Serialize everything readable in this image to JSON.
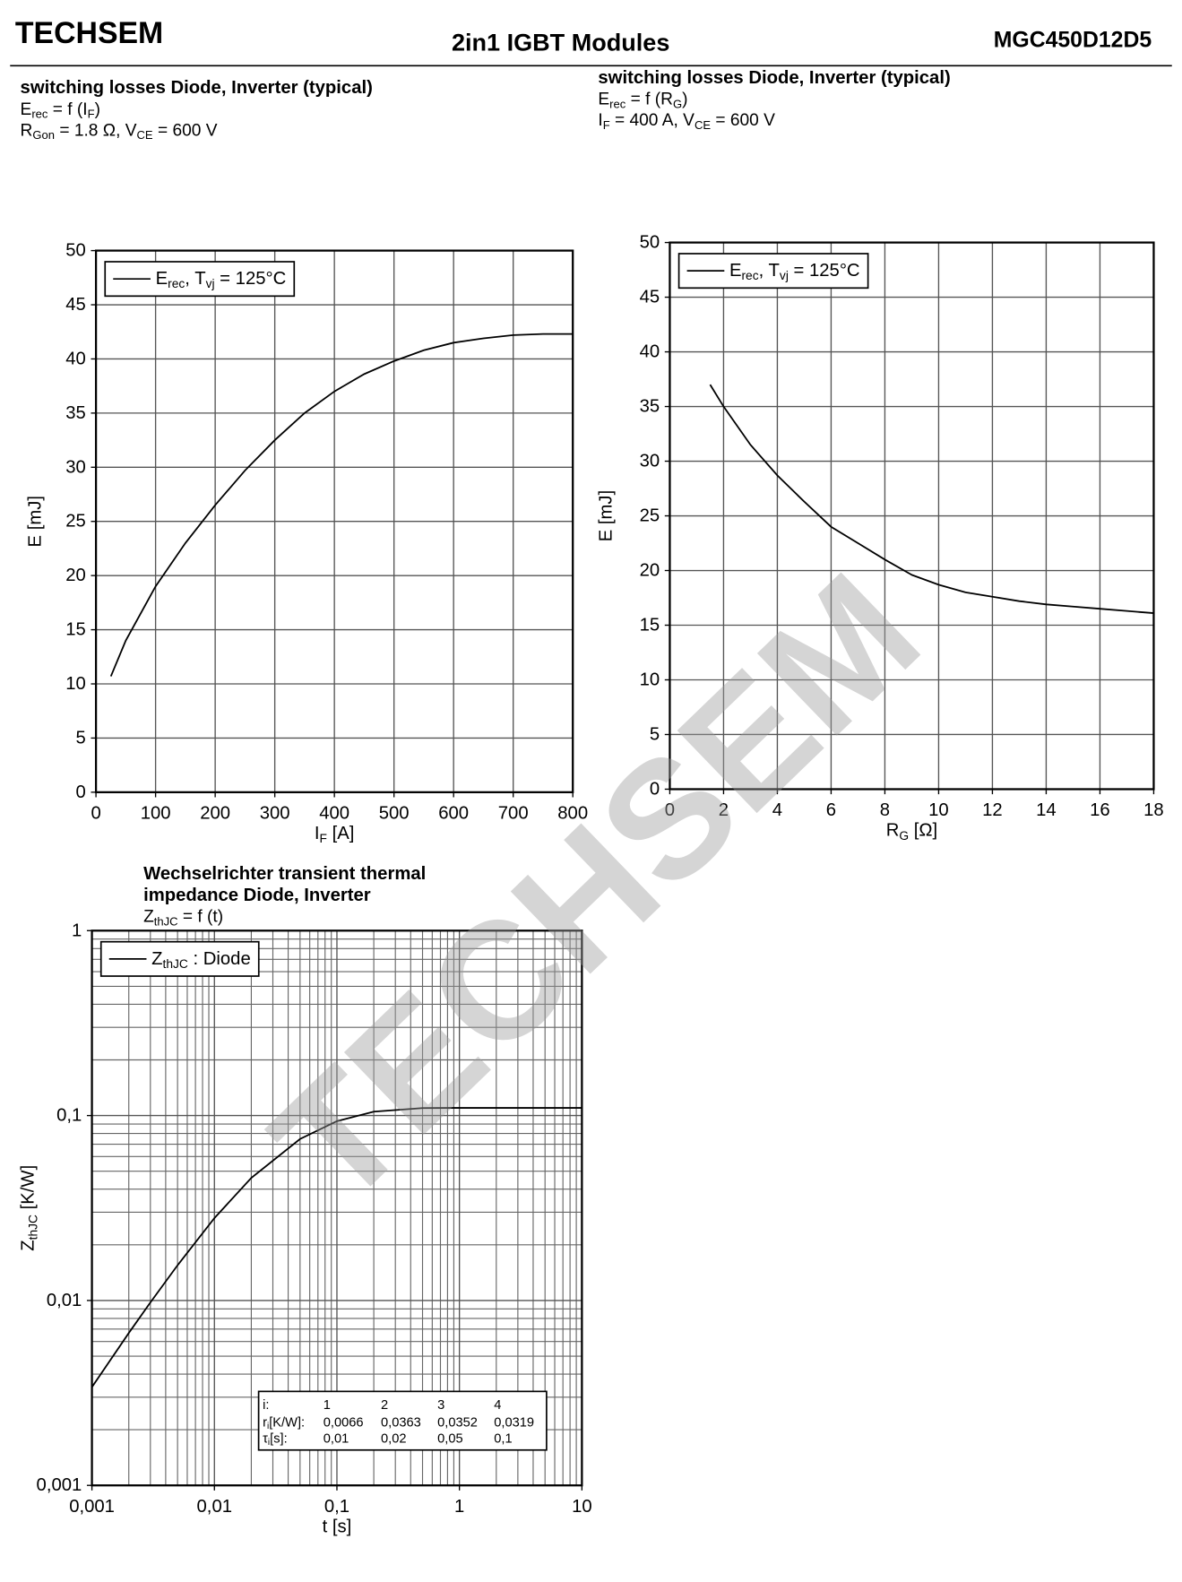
{
  "header": {
    "brand": "TECHSEM",
    "title": "2in1  IGBT  Modules",
    "part_number": "MGC450D12D5",
    "watermark": "TECHSEM"
  },
  "chart_data": [
    {
      "type": "line",
      "title": [
        "switching losses  Diode, Inverter (typical)"
      ],
      "subtitle": [
        [
          "E",
          "rec",
          " = f (I",
          "F",
          ")"
        ],
        [
          "R",
          "Gon",
          " = 1.8 Ω, V",
          "CE",
          " = 600 V"
        ]
      ],
      "x": [
        25,
        50,
        100,
        150,
        200,
        250,
        300,
        350,
        400,
        450,
        500,
        550,
        600,
        650,
        700,
        750,
        800
      ],
      "series": [
        {
          "name": [
            "E",
            "rec",
            ", T",
            "vj",
            " = 125°C"
          ],
          "color": "#000000",
          "values": [
            10.7,
            14,
            19,
            23,
            26.5,
            29.7,
            32.5,
            35,
            37,
            38.6,
            39.8,
            40.8,
            41.5,
            41.9,
            42.2,
            42.3,
            42.3
          ]
        }
      ],
      "xlabel": [
        "I",
        "F",
        " [A]"
      ],
      "ylabel": [
        "E [mJ]"
      ],
      "xlim": [
        0,
        800
      ],
      "xticks": [
        0,
        100,
        200,
        300,
        400,
        500,
        600,
        700,
        800
      ],
      "ylim": [
        0,
        50
      ],
      "yticks": [
        0,
        5,
        10,
        15,
        20,
        25,
        30,
        35,
        40,
        45,
        50
      ],
      "grid": true,
      "legend": "upper left"
    },
    {
      "type": "line",
      "title": [
        "switching losses  Diode, Inverter (typical)"
      ],
      "subtitle": [
        [
          "E",
          "rec",
          " = f (R",
          "G",
          ")"
        ],
        [
          "I",
          "F",
          " = 400 A, V",
          "CE",
          " = 600 V"
        ]
      ],
      "x": [
        1.5,
        2,
        3,
        4,
        5,
        6,
        7,
        8,
        9,
        10,
        11,
        12,
        13,
        14,
        15,
        16,
        17,
        18
      ],
      "series": [
        {
          "name": [
            "E",
            "rec",
            ", T",
            "vj",
            " = 125°C"
          ],
          "color": "#000000",
          "values": [
            37,
            35,
            31.5,
            28.7,
            26.3,
            24,
            22.5,
            21,
            19.6,
            18.7,
            18,
            17.6,
            17.2,
            16.9,
            16.7,
            16.5,
            16.3,
            16.1
          ]
        }
      ],
      "xlabel": [
        "R",
        "G",
        " [Ω]"
      ],
      "ylabel": [
        "E [mJ]"
      ],
      "xlim": [
        0,
        18
      ],
      "xticks": [
        0,
        2,
        4,
        6,
        8,
        10,
        12,
        14,
        16,
        18
      ],
      "ylim": [
        0,
        50
      ],
      "yticks": [
        0,
        5,
        10,
        15,
        20,
        25,
        30,
        35,
        40,
        45,
        50
      ],
      "grid": true,
      "legend": "upper left"
    },
    {
      "type": "line",
      "title": [
        "Wechselrichter transient thermal",
        "impedance  Diode, Inverter"
      ],
      "subtitle": [
        [
          "Z",
          "thJC",
          " = f (t)"
        ]
      ],
      "x": [
        0.001,
        0.002,
        0.003,
        0.005,
        0.01,
        0.02,
        0.05,
        0.1,
        0.2,
        0.5,
        1,
        2,
        5,
        10
      ],
      "series": [
        {
          "name": [
            "Z",
            "thJC",
            " : Diode"
          ],
          "color": "#000000",
          "values": [
            0.0034,
            0.00667,
            0.00976,
            0.0155,
            0.0279,
            0.046,
            0.0747,
            0.0933,
            0.105,
            0.1098,
            0.11,
            0.11,
            0.11,
            0.11
          ]
        }
      ],
      "xlabel": [
        "t [s]"
      ],
      "ylabel": [
        "Z",
        "thJC",
        " [K/W]"
      ],
      "xscale": "log",
      "yscale": "log",
      "xlim": [
        0.001,
        10
      ],
      "xticks": [
        {
          "value": 0.001,
          "label": "0,001"
        },
        {
          "value": 0.01,
          "label": "0,01"
        },
        {
          "value": 0.1,
          "label": "0,1"
        },
        1,
        10
      ],
      "ylim": [
        0.001,
        1
      ],
      "yticks": [
        {
          "value": 0.001,
          "label": "0,001"
        },
        {
          "value": 0.01,
          "label": "0,01"
        },
        {
          "value": 0.1,
          "label": "0,1"
        },
        1
      ],
      "grid": true,
      "minor_grid": true,
      "legend": "upper left",
      "table": {
        "rows": [
          [
            "i:",
            "1",
            "2",
            "3",
            "4"
          ],
          [
            [
              "r",
              "i",
              "[K/W]:"
            ],
            "0,0066",
            "0,0363",
            "0,0352",
            "0,0319"
          ],
          [
            [
              "τ",
              "i",
              "[s]:"
            ],
            "0,01",
            "0,02",
            "0,05",
            "0,1"
          ]
        ]
      }
    }
  ]
}
